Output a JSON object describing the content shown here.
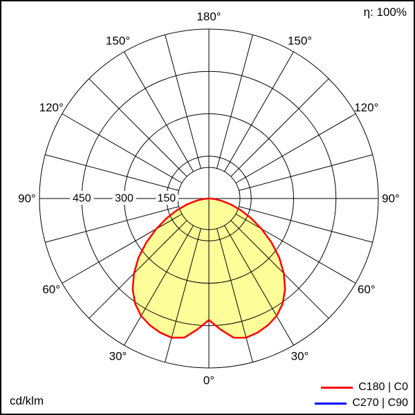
{
  "header": {
    "efficiency_label": "η: 100%"
  },
  "footer": {
    "unit_label": "cd/klm"
  },
  "legend": {
    "items": [
      {
        "label": "C180 | C0",
        "color": "#ff0000"
      },
      {
        "label": "C270 | C90",
        "color": "#0000ff"
      }
    ]
  },
  "chart_data": {
    "type": "polar",
    "unit": "cd/klm",
    "efficiency": "100%",
    "rmax": 600,
    "radial_rings": [
      150,
      300,
      450,
      600
    ],
    "radial_tick_values": [
      450,
      300,
      150
    ],
    "radial_tick_labels": [
      "450",
      "300",
      "150"
    ],
    "angle_tick_values": [
      0,
      30,
      60,
      90,
      120,
      150,
      180
    ],
    "angle_tick_labels": [
      "0°",
      "30°",
      "60°",
      "90°",
      "120°",
      "150°",
      "180°"
    ],
    "spoke_step_deg": 15,
    "grid_color": "#000000",
    "fill_color": "#ffff99",
    "series": [
      {
        "name": "C180 | C0",
        "color": "#ff0000",
        "symmetric": true,
        "gamma_deg": [
          0,
          5,
          10,
          15,
          20,
          25,
          30,
          35,
          40,
          45,
          50,
          55,
          60,
          65,
          70,
          75,
          80,
          85,
          90
        ],
        "values": [
          430,
          465,
          500,
          510,
          505,
          495,
          480,
          455,
          420,
          375,
          325,
          270,
          215,
          165,
          120,
          80,
          45,
          20,
          5
        ]
      },
      {
        "name": "C270 | C90",
        "color": "#0000ff",
        "symmetric": true,
        "gamma_deg": [
          0,
          5,
          10,
          15,
          20,
          25,
          30,
          35,
          40,
          45,
          50,
          55,
          60,
          65,
          70,
          75,
          80,
          85,
          90
        ],
        "values": [
          430,
          465,
          500,
          510,
          505,
          495,
          480,
          455,
          420,
          375,
          325,
          270,
          215,
          165,
          120,
          80,
          45,
          20,
          5
        ]
      }
    ]
  }
}
